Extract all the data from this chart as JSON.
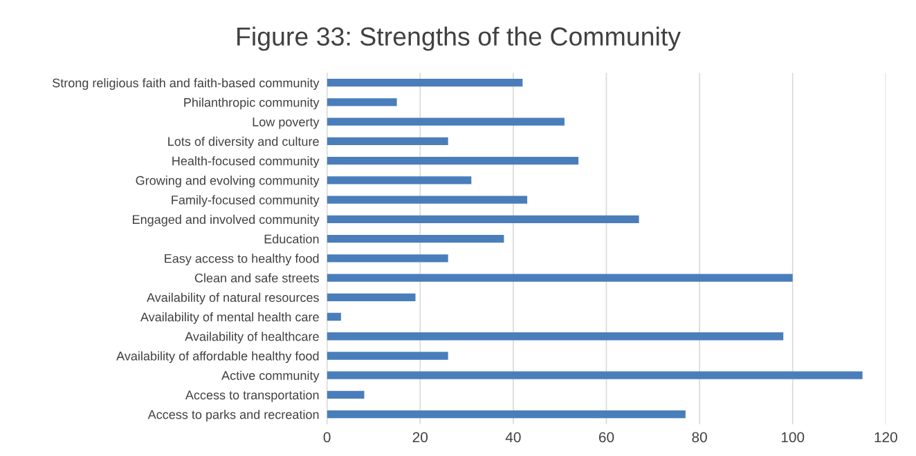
{
  "chart_data": {
    "type": "bar",
    "orientation": "horizontal",
    "title": "Figure 33: Strengths of the Community",
    "categories": [
      "Strong religious faith and faith-based community",
      "Philanthropic community",
      "Low poverty",
      "Lots of diversity and culture",
      "Health-focused community",
      "Growing and evolving community",
      "Family-focused community",
      "Engaged and involved community",
      "Education",
      "Easy access to healthy food",
      "Clean and safe streets",
      "Availability of natural resources",
      "Availability of mental health care",
      "Availability of healthcare",
      "Availability of affordable healthy food",
      "Active community",
      "Access to transportation",
      "Access to parks and recreation"
    ],
    "values": [
      42,
      15,
      51,
      26,
      54,
      31,
      43,
      67,
      38,
      26,
      100,
      19,
      3,
      98,
      26,
      115,
      8,
      77
    ],
    "color": "#4a7ebb",
    "xlim": [
      0,
      120
    ],
    "xticks": [
      0,
      20,
      40,
      60,
      80,
      100,
      120
    ],
    "grid": "x"
  }
}
